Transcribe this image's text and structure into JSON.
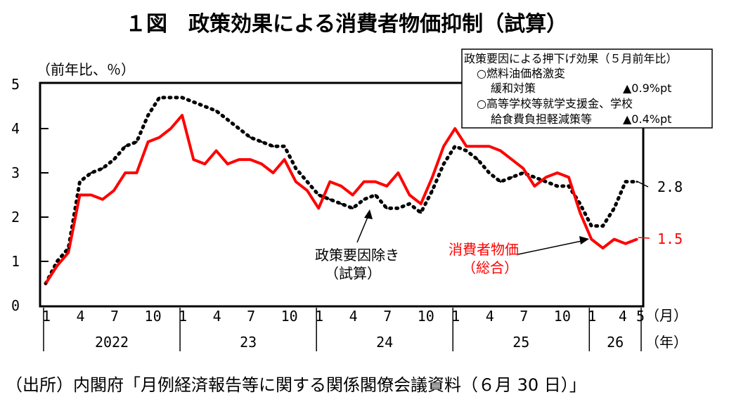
{
  "title": "１図　政策効果による消費者物価抑制（試算）",
  "source": "（出所）内閣府「月例経済報告等に関する関係閣僚会議資料（６月 30 日）」",
  "chart_data": {
    "type": "line",
    "ylabel": "（前年比、％）",
    "ylim": [
      0,
      5
    ],
    "yticks": [
      "0",
      "1",
      "2",
      "3",
      "4",
      "5"
    ],
    "month_unit": "（月）",
    "year_unit": "（年）",
    "x_month_ticks": [
      "1",
      "4",
      "7",
      "10",
      "1",
      "4",
      "7",
      "10",
      "1",
      "4",
      "7",
      "10",
      "1",
      "4",
      "7",
      "10",
      "1",
      "4",
      "5"
    ],
    "x_years": [
      "2022",
      "23",
      "24",
      "25",
      "26"
    ],
    "x": [
      "2022-01",
      "2022-02",
      "2022-03",
      "2022-04",
      "2022-05",
      "2022-06",
      "2022-07",
      "2022-08",
      "2022-09",
      "2022-10",
      "2022-11",
      "2022-12",
      "2023-01",
      "2023-02",
      "2023-03",
      "2023-04",
      "2023-05",
      "2023-06",
      "2023-07",
      "2023-08",
      "2023-09",
      "2023-10",
      "2023-11",
      "2023-12",
      "2024-01",
      "2024-02",
      "2024-03",
      "2024-04",
      "2024-05",
      "2024-06",
      "2024-07",
      "2024-08",
      "2024-09",
      "2024-10",
      "2024-11",
      "2024-12",
      "2025-01",
      "2025-02",
      "2025-03",
      "2025-04",
      "2025-05",
      "2025-06",
      "2025-07",
      "2025-08",
      "2025-09",
      "2025-10",
      "2025-11",
      "2025-12",
      "2026-01",
      "2026-02",
      "2026-03",
      "2026-04",
      "2026-05"
    ],
    "series": [
      {
        "name": "消費者物価",
        "name_line2": "（総合）",
        "color": "#ff0000",
        "style": "solid",
        "end_label": "1.5",
        "values": [
          0.5,
          0.9,
          1.2,
          2.5,
          2.5,
          2.4,
          2.6,
          3.0,
          3.0,
          3.7,
          3.8,
          4.0,
          4.3,
          3.3,
          3.2,
          3.5,
          3.2,
          3.3,
          3.3,
          3.2,
          3.0,
          3.3,
          2.8,
          2.6,
          2.2,
          2.8,
          2.7,
          2.5,
          2.8,
          2.8,
          2.7,
          3.0,
          2.5,
          2.3,
          2.9,
          3.6,
          4.0,
          3.6,
          3.6,
          3.6,
          3.5,
          3.3,
          3.1,
          2.7,
          2.9,
          3.0,
          2.9,
          2.1,
          1.5,
          1.3,
          1.5,
          1.4,
          1.5
        ]
      },
      {
        "name": "政策要因除き",
        "name_line2": "（試算）",
        "color": "#000000",
        "style": "dotted",
        "end_label": "2.8",
        "values": [
          0.5,
          1.0,
          1.3,
          2.8,
          3.0,
          3.1,
          3.3,
          3.6,
          3.7,
          4.3,
          4.7,
          4.7,
          4.7,
          4.6,
          4.5,
          4.4,
          4.2,
          4.0,
          3.8,
          3.7,
          3.6,
          3.6,
          3.1,
          2.8,
          2.5,
          2.4,
          2.3,
          2.2,
          2.4,
          2.5,
          2.2,
          2.2,
          2.3,
          2.1,
          2.6,
          3.2,
          3.6,
          3.5,
          3.3,
          3.0,
          2.8,
          2.9,
          3.0,
          2.9,
          2.8,
          2.7,
          2.7,
          2.3,
          1.8,
          1.8,
          2.2,
          2.8,
          2.8
        ]
      }
    ],
    "legend": {
      "title": "政策要因による押下げ効果（５月前年比）",
      "items": [
        {
          "line1": "○燃料油価格激変",
          "line2": "緩和対策",
          "value": "▲0.9%pt"
        },
        {
          "line1": "○高等学校等就学支援金、学校",
          "line2": "給食費負担軽減策等",
          "value": "▲0.4%pt"
        }
      ]
    }
  }
}
